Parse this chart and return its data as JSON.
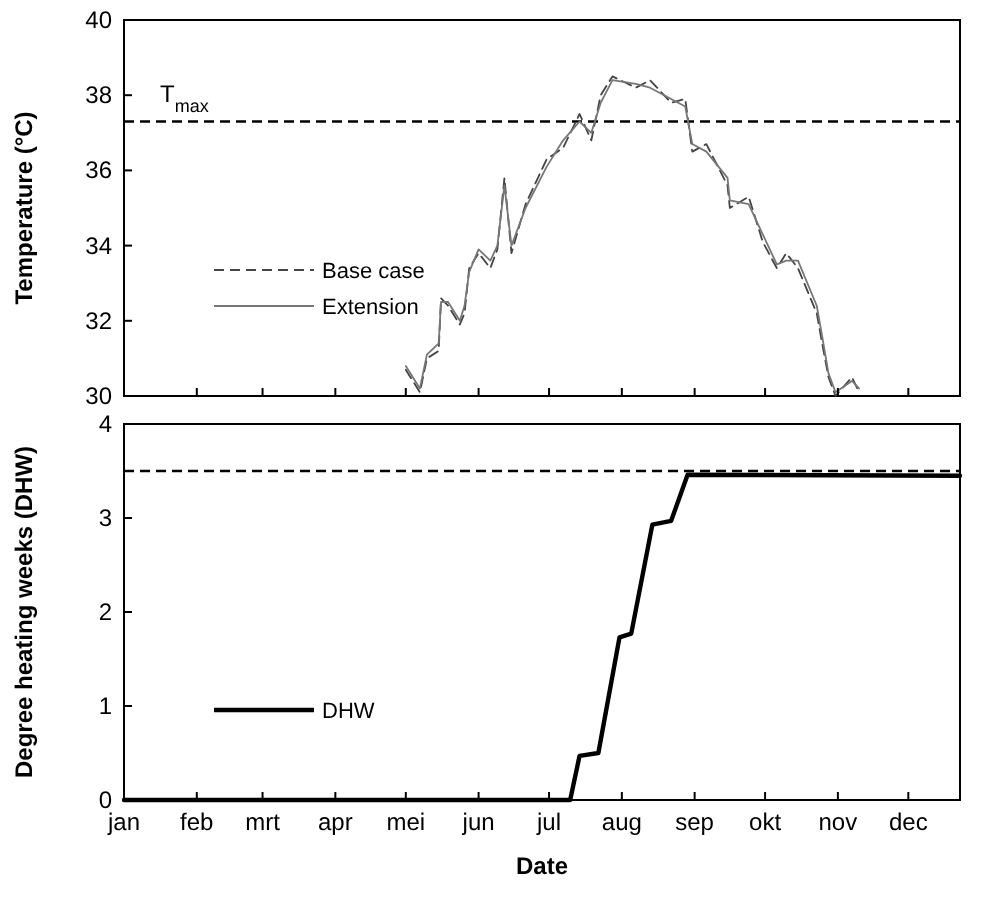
{
  "chart_data": [
    {
      "type": "line",
      "ylabel": "Temperature (°C)",
      "x": [
        "--05-01",
        "--05-07",
        "--05-10",
        "--05-15",
        "--05-16",
        "--05-19",
        "--05-24",
        "--05-26",
        "--05-28",
        "--06-01",
        "--06-06",
        "--06-09",
        "--06-12",
        "--06-15",
        "--06-21",
        "--06-30",
        "--07-07",
        "--07-14",
        "--07-19",
        "--07-23",
        "--07-28",
        "--08-07",
        "--08-13",
        "--08-22",
        "--08-28",
        "--08-31",
        "--09-06",
        "--09-15",
        "--09-16",
        "--09-24",
        "--09-30",
        "--10-06",
        "--10-10",
        "--10-15",
        "--10-23",
        "--10-25",
        "--10-28",
        "--10-31",
        "--11-07",
        "--11-10"
      ],
      "series": [
        {
          "name": "Base case",
          "color": "#444444",
          "line_style": "dashed",
          "values": [
            30.7,
            30.1,
            31.0,
            31.2,
            32.6,
            32.4,
            31.9,
            32.2,
            33.4,
            33.8,
            33.4,
            33.9,
            35.8,
            33.8,
            35.1,
            36.3,
            36.6,
            37.5,
            36.8,
            38.0,
            38.5,
            38.2,
            38.4,
            37.8,
            37.9,
            36.5,
            36.7,
            35.6,
            35.0,
            35.3,
            34.1,
            33.4,
            33.8,
            33.4,
            32.2,
            31.5,
            30.5,
            30.0,
            30.5,
            30.1
          ]
        },
        {
          "name": "Extension",
          "color": "#777777",
          "line_style": "solid",
          "values": [
            30.8,
            30.2,
            31.1,
            31.4,
            32.5,
            32.5,
            32.0,
            32.4,
            33.3,
            33.9,
            33.6,
            34.0,
            35.6,
            34.0,
            35.0,
            36.1,
            36.8,
            37.3,
            37.0,
            37.8,
            38.4,
            38.3,
            38.2,
            37.9,
            37.7,
            36.7,
            36.5,
            35.8,
            35.2,
            35.1,
            34.3,
            33.5,
            33.6,
            33.6,
            32.4,
            31.7,
            30.6,
            30.1,
            30.4,
            30.2
          ]
        }
      ],
      "xlim": [
        "--01-01",
        "--12-23"
      ],
      "xticks": [
        {
          "value": "--01-01",
          "label": null
        },
        {
          "value": "--02-01",
          "label": null
        },
        {
          "value": "--03-01",
          "label": null
        },
        {
          "value": "--04-01",
          "label": null
        },
        {
          "value": "--05-01",
          "label": null
        },
        {
          "value": "--06-01",
          "label": null
        },
        {
          "value": "--07-01",
          "label": null
        },
        {
          "value": "--08-01",
          "label": null
        },
        {
          "value": "--09-01",
          "label": null
        },
        {
          "value": "--10-01",
          "label": null
        },
        {
          "value": "--11-01",
          "label": null
        },
        {
          "value": "--12-01",
          "label": null
        }
      ],
      "ylim": [
        30,
        40
      ],
      "yticks": [
        30,
        32,
        34,
        36,
        38,
        40
      ],
      "tick_labels": "y",
      "ref_lines": [
        {
          "axis": "y",
          "value": 37.3,
          "label": "T$_{max}$",
          "line_style": "dashed",
          "color": "#000000"
        }
      ],
      "legend": "bottom left"
    },
    {
      "type": "line",
      "xlabel": "Date",
      "ylabel": "Degree heating weeks (DHW)",
      "x": [
        "--01-01",
        "--07-10",
        "--07-14",
        "--07-22",
        "--07-31",
        "--08-05",
        "--08-14",
        "--08-22",
        "--08-29",
        "--12-23"
      ],
      "series": [
        {
          "name": "DHW",
          "color": "#000000",
          "values": [
            0,
            0,
            0.47,
            0.5,
            1.73,
            1.77,
            2.93,
            2.97,
            3.46,
            3.45
          ]
        }
      ],
      "xlim": [
        "--01-01",
        "--12-23"
      ],
      "xticks": [
        {
          "value": "--01-01",
          "label": "jan"
        },
        {
          "value": "--02-01",
          "label": "feb"
        },
        {
          "value": "--03-01",
          "label": "mrt"
        },
        {
          "value": "--04-01",
          "label": "apr"
        },
        {
          "value": "--05-01",
          "label": "mei"
        },
        {
          "value": "--06-01",
          "label": "jun"
        },
        {
          "value": "--07-01",
          "label": "jul"
        },
        {
          "value": "--08-01",
          "label": "aug"
        },
        {
          "value": "--09-01",
          "label": "sep"
        },
        {
          "value": "--10-01",
          "label": "okt"
        },
        {
          "value": "--11-01",
          "label": "nov"
        },
        {
          "value": "--12-01",
          "label": "dec"
        }
      ],
      "ylim": [
        0,
        4
      ],
      "yticks": [
        0,
        1,
        2,
        3,
        4
      ],
      "ref_lines": [
        {
          "axis": "y",
          "value": 3.5,
          "line_style": "dashed",
          "color": "#000000"
        }
      ],
      "legend": "bottom left"
    }
  ]
}
